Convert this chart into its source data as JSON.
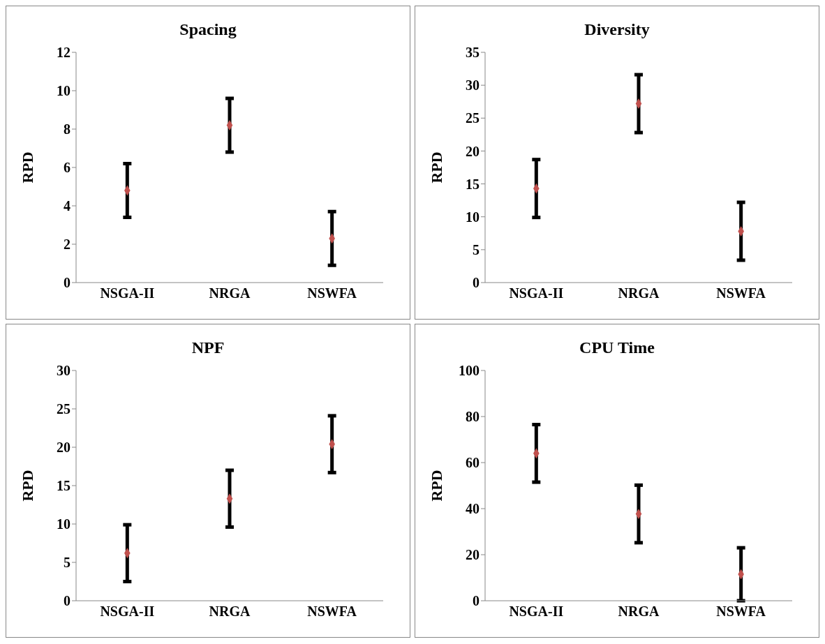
{
  "chart_data": [
    {
      "type": "scatter",
      "title": "Spacing",
      "ylabel": "RPD",
      "categories": [
        "NSGA-II",
        "NRGA",
        "NSWFA"
      ],
      "values": [
        4.8,
        8.2,
        2.3
      ],
      "errors": [
        1.4,
        1.4,
        1.4
      ],
      "color": "#c0504d",
      "marker": "diamond",
      "ylim": [
        0,
        12
      ],
      "yticks": [
        0,
        2,
        4,
        6,
        8,
        10,
        12
      ],
      "grid": false,
      "legend": false
    },
    {
      "type": "scatter",
      "title": "Diversity",
      "ylabel": "RPD",
      "categories": [
        "NSGA-II",
        "NRGA",
        "NSWFA"
      ],
      "values": [
        14.3,
        27.2,
        7.8
      ],
      "errors": [
        4.4,
        4.4,
        4.4
      ],
      "color": "#c0504d",
      "marker": "diamond",
      "ylim": [
        0,
        35
      ],
      "yticks": [
        0,
        5,
        10,
        15,
        20,
        25,
        30,
        35
      ],
      "grid": false,
      "legend": false
    },
    {
      "type": "scatter",
      "title": "NPF",
      "ylabel": "RPD",
      "categories": [
        "NSGA-II",
        "NRGA",
        "NSWFA"
      ],
      "values": [
        6.2,
        13.3,
        20.4
      ],
      "errors": [
        3.7,
        3.7,
        3.7
      ],
      "color": "#c0504d",
      "marker": "diamond",
      "ylim": [
        0,
        30
      ],
      "yticks": [
        0,
        5,
        10,
        15,
        20,
        25,
        30
      ],
      "grid": false,
      "legend": false
    },
    {
      "type": "scatter",
      "title": "CPU Time",
      "ylabel": "RPD",
      "categories": [
        "NSGA-II",
        "NRGA",
        "NSWFA"
      ],
      "values": [
        64,
        37.7,
        11.5
      ],
      "errors": [
        12.5,
        12.5,
        11.5
      ],
      "color": "#c0504d",
      "marker": "diamond",
      "ylim": [
        0,
        100
      ],
      "yticks": [
        0,
        20,
        40,
        60,
        80,
        100
      ],
      "grid": false,
      "legend": false
    }
  ]
}
